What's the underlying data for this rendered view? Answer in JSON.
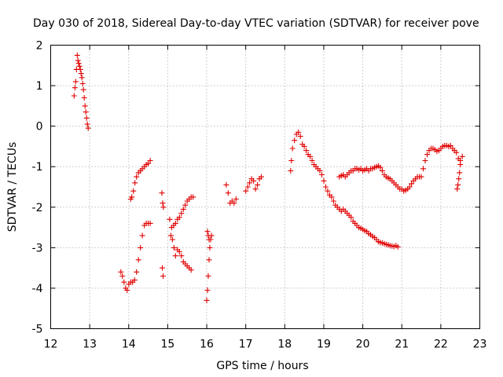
{
  "chart_data": {
    "type": "scatter",
    "title": "Day 030 of 2018, Sidereal Day-to-day VTEC variation (SDTVAR) for receiver pove",
    "xlabel": "GPS time / hours",
    "ylabel": "SDTVAR / TECUs",
    "xlim": [
      12,
      23
    ],
    "ylim": [
      -5,
      2
    ],
    "xticks": [
      "12",
      "13",
      "14",
      "15",
      "16",
      "17",
      "18",
      "19",
      "20",
      "21",
      "22",
      "23"
    ],
    "yticks": [
      "-5",
      "-4",
      "-3",
      "-2",
      "-1",
      "0",
      "1",
      "2"
    ],
    "grid": true,
    "marker": "+",
    "color": "#e00000",
    "series": [
      {
        "name": "sdtvar",
        "points": [
          [
            12.6,
            0.75
          ],
          [
            12.62,
            0.95
          ],
          [
            12.64,
            1.1
          ],
          [
            12.66,
            1.4
          ],
          [
            12.68,
            1.75
          ],
          [
            12.7,
            1.62
          ],
          [
            12.72,
            1.55
          ],
          [
            12.74,
            1.48
          ],
          [
            12.76,
            1.4
          ],
          [
            12.78,
            1.3
          ],
          [
            12.8,
            1.2
          ],
          [
            12.82,
            1.05
          ],
          [
            12.84,
            0.9
          ],
          [
            12.86,
            0.7
          ],
          [
            12.88,
            0.5
          ],
          [
            12.9,
            0.35
          ],
          [
            12.92,
            0.2
          ],
          [
            12.94,
            0.05
          ],
          [
            12.96,
            -0.05
          ],
          [
            13.8,
            -3.6
          ],
          [
            13.84,
            -3.7
          ],
          [
            13.88,
            -3.85
          ],
          [
            13.92,
            -4.0
          ],
          [
            13.96,
            -4.05
          ],
          [
            14.0,
            -3.9
          ],
          [
            14.05,
            -3.85
          ],
          [
            14.1,
            -3.85
          ],
          [
            14.15,
            -3.8
          ],
          [
            14.2,
            -3.6
          ],
          [
            14.25,
            -3.3
          ],
          [
            14.3,
            -3.0
          ],
          [
            14.35,
            -2.7
          ],
          [
            14.4,
            -2.45
          ],
          [
            14.45,
            -2.4
          ],
          [
            14.5,
            -2.4
          ],
          [
            14.55,
            -2.4
          ],
          [
            14.05,
            -1.8
          ],
          [
            14.08,
            -1.75
          ],
          [
            14.12,
            -1.6
          ],
          [
            14.16,
            -1.4
          ],
          [
            14.2,
            -1.25
          ],
          [
            14.25,
            -1.15
          ],
          [
            14.3,
            -1.1
          ],
          [
            14.35,
            -1.05
          ],
          [
            14.4,
            -1.0
          ],
          [
            14.45,
            -0.95
          ],
          [
            14.5,
            -0.92
          ],
          [
            14.55,
            -0.85
          ],
          [
            14.85,
            -1.65
          ],
          [
            14.87,
            -1.9
          ],
          [
            14.89,
            -2.0
          ],
          [
            14.86,
            -3.5
          ],
          [
            14.88,
            -3.7
          ],
          [
            15.05,
            -2.3
          ],
          [
            15.08,
            -2.7
          ],
          [
            15.12,
            -2.8
          ],
          [
            15.16,
            -3.0
          ],
          [
            15.2,
            -3.2
          ],
          [
            15.25,
            -3.05
          ],
          [
            15.3,
            -3.1
          ],
          [
            15.35,
            -3.2
          ],
          [
            15.4,
            -3.35
          ],
          [
            15.45,
            -3.4
          ],
          [
            15.5,
            -3.45
          ],
          [
            15.55,
            -3.5
          ],
          [
            15.6,
            -3.55
          ],
          [
            15.1,
            -2.5
          ],
          [
            15.15,
            -2.45
          ],
          [
            15.2,
            -2.4
          ],
          [
            15.25,
            -2.3
          ],
          [
            15.3,
            -2.25
          ],
          [
            15.35,
            -2.15
          ],
          [
            15.4,
            -2.05
          ],
          [
            15.45,
            -1.95
          ],
          [
            15.5,
            -1.85
          ],
          [
            15.55,
            -1.8
          ],
          [
            15.6,
            -1.75
          ],
          [
            15.65,
            -1.75
          ],
          [
            16.0,
            -4.3
          ],
          [
            16.02,
            -4.05
          ],
          [
            16.04,
            -3.7
          ],
          [
            16.06,
            -3.3
          ],
          [
            16.08,
            -3.0
          ],
          [
            16.1,
            -2.8
          ],
          [
            16.12,
            -2.7
          ],
          [
            16.02,
            -2.6
          ],
          [
            16.04,
            -2.7
          ],
          [
            16.06,
            -2.8
          ],
          [
            16.5,
            -1.45
          ],
          [
            16.55,
            -1.65
          ],
          [
            16.6,
            -1.9
          ],
          [
            16.65,
            -1.85
          ],
          [
            16.7,
            -1.9
          ],
          [
            16.75,
            -1.8
          ],
          [
            17.0,
            -1.6
          ],
          [
            17.05,
            -1.5
          ],
          [
            17.1,
            -1.4
          ],
          [
            17.15,
            -1.3
          ],
          [
            17.2,
            -1.35
          ],
          [
            17.25,
            -1.55
          ],
          [
            17.3,
            -1.45
          ],
          [
            17.35,
            -1.3
          ],
          [
            17.4,
            -1.25
          ],
          [
            18.15,
            -1.1
          ],
          [
            18.17,
            -0.85
          ],
          [
            18.2,
            -0.55
          ],
          [
            18.25,
            -0.35
          ],
          [
            18.3,
            -0.2
          ],
          [
            18.35,
            -0.15
          ],
          [
            18.4,
            -0.25
          ],
          [
            18.45,
            -0.45
          ],
          [
            18.5,
            -0.5
          ],
          [
            18.55,
            -0.6
          ],
          [
            18.6,
            -0.7
          ],
          [
            18.65,
            -0.75
          ],
          [
            18.7,
            -0.85
          ],
          [
            18.75,
            -0.95
          ],
          [
            18.8,
            -1.0
          ],
          [
            18.85,
            -1.05
          ],
          [
            18.9,
            -1.1
          ],
          [
            18.95,
            -1.2
          ],
          [
            19.0,
            -1.35
          ],
          [
            19.05,
            -1.5
          ],
          [
            19.1,
            -1.6
          ],
          [
            19.15,
            -1.7
          ],
          [
            19.2,
            -1.75
          ],
          [
            19.25,
            -1.85
          ],
          [
            19.3,
            -1.95
          ],
          [
            19.35,
            -2.0
          ],
          [
            19.4,
            -2.05
          ],
          [
            19.45,
            -2.1
          ],
          [
            19.5,
            -2.05
          ],
          [
            19.55,
            -2.1
          ],
          [
            19.6,
            -2.15
          ],
          [
            19.65,
            -2.2
          ],
          [
            19.7,
            -2.25
          ],
          [
            19.75,
            -2.35
          ],
          [
            19.8,
            -2.4
          ],
          [
            19.85,
            -2.45
          ],
          [
            19.9,
            -2.5
          ],
          [
            19.95,
            -2.52
          ],
          [
            20.0,
            -2.55
          ],
          [
            20.05,
            -2.58
          ],
          [
            20.1,
            -2.6
          ],
          [
            20.15,
            -2.65
          ],
          [
            20.2,
            -2.68
          ],
          [
            20.25,
            -2.72
          ],
          [
            20.3,
            -2.75
          ],
          [
            20.35,
            -2.8
          ],
          [
            20.4,
            -2.85
          ],
          [
            20.45,
            -2.87
          ],
          [
            20.5,
            -2.88
          ],
          [
            20.55,
            -2.9
          ],
          [
            20.6,
            -2.92
          ],
          [
            20.65,
            -2.93
          ],
          [
            20.7,
            -2.95
          ],
          [
            20.75,
            -2.96
          ],
          [
            20.8,
            -2.97
          ],
          [
            20.85,
            -2.95
          ],
          [
            20.9,
            -2.98
          ],
          [
            19.4,
            -1.25
          ],
          [
            19.45,
            -1.22
          ],
          [
            19.5,
            -1.2
          ],
          [
            19.55,
            -1.25
          ],
          [
            19.6,
            -1.2
          ],
          [
            19.65,
            -1.15
          ],
          [
            19.7,
            -1.1
          ],
          [
            19.75,
            -1.1
          ],
          [
            19.8,
            -1.05
          ],
          [
            19.85,
            -1.05
          ],
          [
            19.9,
            -1.08
          ],
          [
            19.95,
            -1.05
          ],
          [
            20.0,
            -1.1
          ],
          [
            20.05,
            -1.08
          ],
          [
            20.1,
            -1.05
          ],
          [
            20.15,
            -1.1
          ],
          [
            20.2,
            -1.05
          ],
          [
            20.25,
            -1.05
          ],
          [
            20.3,
            -1.02
          ],
          [
            20.35,
            -1.0
          ],
          [
            20.4,
            -0.98
          ],
          [
            20.45,
            -1.02
          ],
          [
            20.5,
            -1.1
          ],
          [
            20.55,
            -1.2
          ],
          [
            20.6,
            -1.25
          ],
          [
            20.65,
            -1.28
          ],
          [
            20.7,
            -1.3
          ],
          [
            20.75,
            -1.35
          ],
          [
            20.8,
            -1.4
          ],
          [
            20.85,
            -1.45
          ],
          [
            20.9,
            -1.5
          ],
          [
            20.95,
            -1.55
          ],
          [
            21.0,
            -1.55
          ],
          [
            21.05,
            -1.6
          ],
          [
            21.1,
            -1.58
          ],
          [
            21.15,
            -1.55
          ],
          [
            21.2,
            -1.5
          ],
          [
            21.25,
            -1.42
          ],
          [
            21.3,
            -1.35
          ],
          [
            21.35,
            -1.3
          ],
          [
            21.4,
            -1.25
          ],
          [
            21.45,
            -1.25
          ],
          [
            21.5,
            -1.25
          ],
          [
            21.55,
            -1.05
          ],
          [
            21.6,
            -0.85
          ],
          [
            21.65,
            -0.7
          ],
          [
            21.7,
            -0.6
          ],
          [
            21.75,
            -0.55
          ],
          [
            21.8,
            -0.55
          ],
          [
            21.85,
            -0.58
          ],
          [
            21.9,
            -0.62
          ],
          [
            21.95,
            -0.6
          ],
          [
            22.0,
            -0.55
          ],
          [
            22.05,
            -0.5
          ],
          [
            22.1,
            -0.48
          ],
          [
            22.15,
            -0.48
          ],
          [
            22.2,
            -0.5
          ],
          [
            22.25,
            -0.48
          ],
          [
            22.3,
            -0.55
          ],
          [
            22.35,
            -0.6
          ],
          [
            22.4,
            -0.65
          ],
          [
            22.45,
            -0.8
          ],
          [
            22.5,
            -0.85
          ],
          [
            22.55,
            -0.75
          ],
          [
            22.42,
            -1.55
          ],
          [
            22.44,
            -1.45
          ],
          [
            22.46,
            -1.3
          ],
          [
            22.48,
            -1.15
          ],
          [
            22.5,
            -0.95
          ]
        ]
      }
    ]
  }
}
